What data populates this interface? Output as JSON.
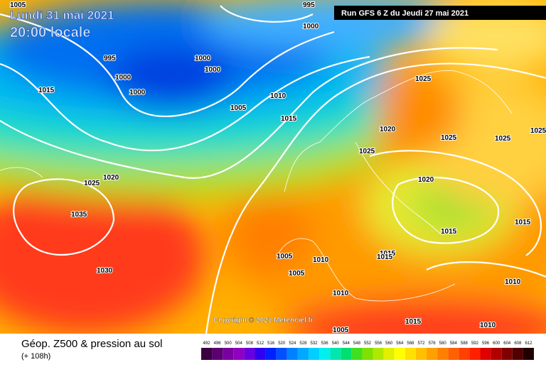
{
  "header": {
    "date": "Lundi 31 mai 2021",
    "time": "20:00 locale",
    "run": "Run GFS 6 Z du Jeudi 27 mai 2021"
  },
  "copyright": "Copyright © 2021 Meteociel.fr",
  "legend": {
    "title": "Géop. Z500 & pression au sol",
    "lead_time": "(+ 108h)",
    "scale": [
      "492",
      "496",
      "500",
      "504",
      "508",
      "512",
      "516",
      "520",
      "524",
      "528",
      "532",
      "536",
      "540",
      "544",
      "548",
      "552",
      "556",
      "560",
      "564",
      "568",
      "572",
      "576",
      "580",
      "584",
      "588",
      "592",
      "596",
      "600",
      "604",
      "608",
      "612"
    ]
  },
  "isobar_labels": [
    "1005",
    "995",
    "1000",
    "995",
    "1000",
    "1000",
    "1000",
    "1015",
    "1000",
    "1010",
    "1005",
    "1015",
    "1025",
    "1020",
    "1025",
    "1025",
    "1025",
    "1025",
    "1020",
    "1025",
    "1020",
    "1035",
    "1015",
    "1015",
    "1030",
    "1005",
    "1010",
    "1015",
    "1015",
    "1005",
    "1010",
    "1010",
    "1015",
    "1010",
    "1005"
  ]
}
